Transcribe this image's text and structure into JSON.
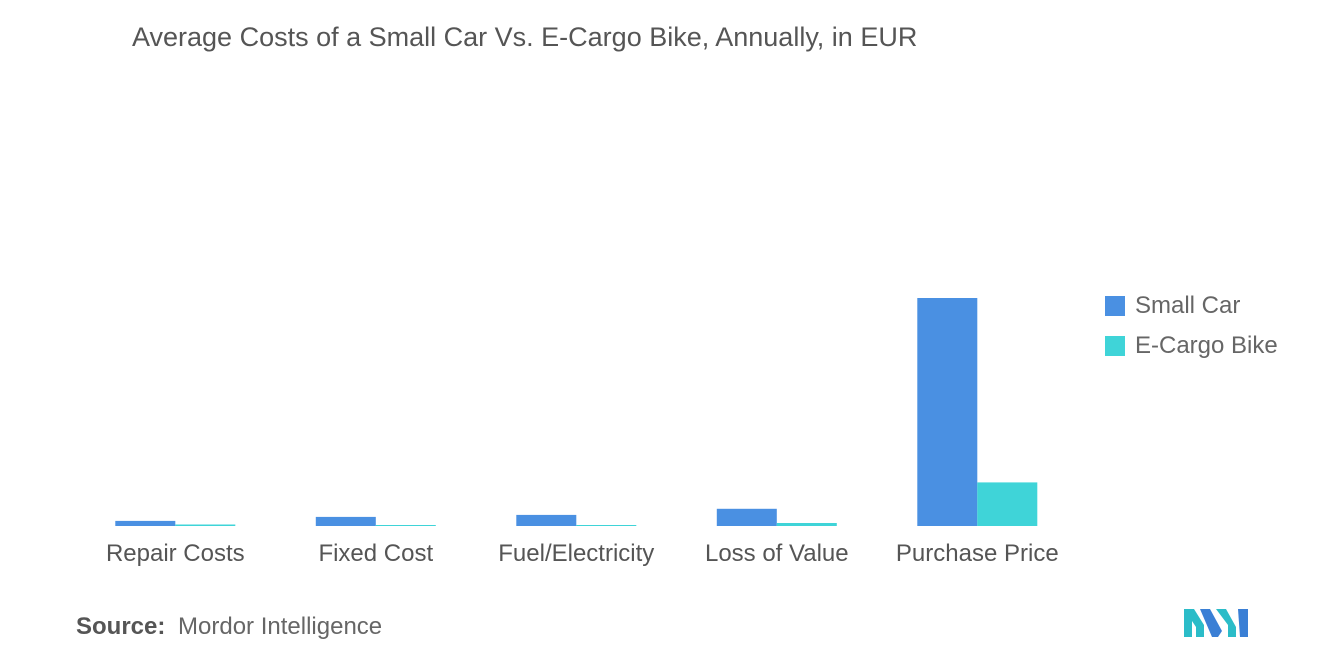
{
  "title": "Average Costs of a Small Car Vs. E-Cargo Bike, Annually, in EUR",
  "source": {
    "label": "Source:",
    "value": "Mordor Intelligence"
  },
  "logo": {
    "icon": "mordor-intelligence-logo-icon",
    "colors": [
      "#2bbcc8",
      "#3a7fd5"
    ]
  },
  "chart_data": {
    "type": "bar",
    "title": "Average Costs of a Small Car Vs. E-Cargo Bike, Annually, in EUR",
    "xlabel": "",
    "ylabel": "",
    "grid": false,
    "legend_position": "right",
    "categories": [
      "Repair Costs",
      "Fixed Cost",
      "Fuel/Electricity",
      "Loss of Value",
      "Purchase Price"
    ],
    "series": [
      {
        "name": "Small Car",
        "color": "#4a90e2",
        "values": [
          500,
          900,
          1100,
          1700,
          22500
        ]
      },
      {
        "name": "E-Cargo Bike",
        "color": "#3fd4d8",
        "values": [
          150,
          50,
          20,
          300,
          4300
        ]
      }
    ],
    "ylim": [
      0,
      22500
    ]
  }
}
